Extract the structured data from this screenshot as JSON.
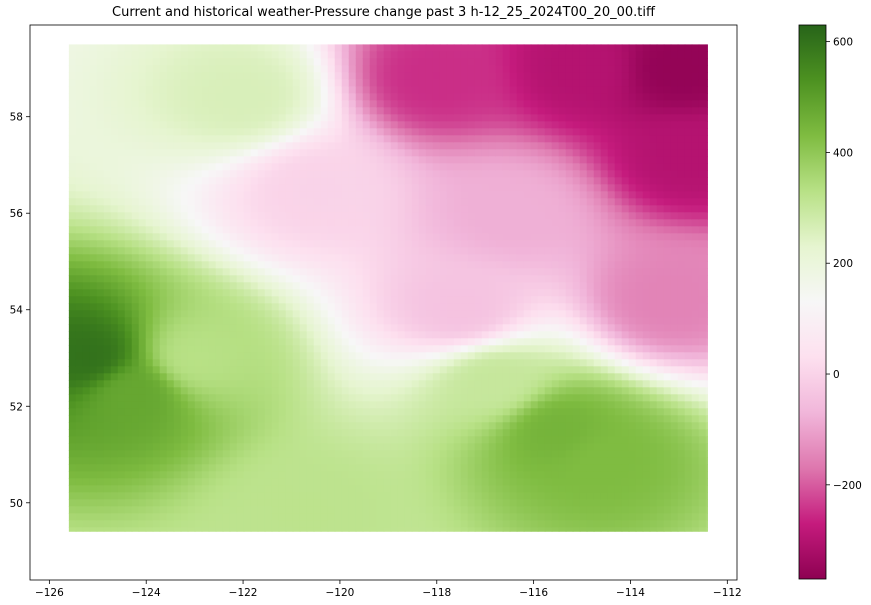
{
  "chart_data": {
    "type": "heatmap",
    "title": "Current and historical weather-Pressure change past 3 h-12_25_2024T00_20_00.tiff",
    "xlabel": "",
    "ylabel": "",
    "xlim": [
      -126.4,
      -111.8
    ],
    "ylim": [
      48.4,
      59.9
    ],
    "x_ticks": [
      -126,
      -124,
      -122,
      -120,
      -118,
      -116,
      -114,
      -112
    ],
    "y_ticks": [
      50,
      52,
      54,
      56,
      58
    ],
    "data_extent": {
      "lon": [
        -125.6,
        -112.4
      ],
      "lat": [
        49.4,
        59.5
      ]
    },
    "grid": false,
    "colormap": "PiYG",
    "colorbar": {
      "range": [
        -370,
        630
      ],
      "ticks": [
        -200,
        0,
        200,
        400,
        600
      ]
    },
    "field_features": [
      {
        "lon": -125.2,
        "lat": 53.0,
        "value": 600
      },
      {
        "lon": -124.3,
        "lat": 52.3,
        "value": 480
      },
      {
        "lon": -123.0,
        "lat": 53.0,
        "value": 330
      },
      {
        "lon": -115.5,
        "lat": 51.5,
        "value": 450
      },
      {
        "lon": -114.6,
        "lat": 50.9,
        "value": 430
      },
      {
        "lon": -116.8,
        "lat": 52.5,
        "value": 300
      },
      {
        "lon": -120.7,
        "lat": 49.8,
        "value": 320
      },
      {
        "lon": -122.0,
        "lat": 58.4,
        "value": 260
      },
      {
        "lon": -115.0,
        "lat": 59.0,
        "value": -300
      },
      {
        "lon": -113.0,
        "lat": 59.0,
        "value": -360
      },
      {
        "lon": -112.8,
        "lat": 57.2,
        "value": -300
      },
      {
        "lon": -118.0,
        "lat": 58.8,
        "value": -250
      },
      {
        "lon": -116.5,
        "lat": 56.0,
        "value": -80
      },
      {
        "lon": -117.5,
        "lat": 54.0,
        "value": -40
      },
      {
        "lon": -113.2,
        "lat": 54.2,
        "value": -150
      },
      {
        "lon": -120.5,
        "lat": 56.5,
        "value": 0
      }
    ],
    "background_value": 150
  }
}
